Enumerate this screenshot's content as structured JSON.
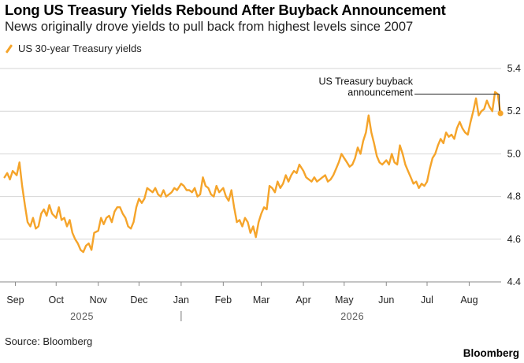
{
  "title": "Long US Treasury Yields Rebound After Buyback Announcement",
  "subtitle": "News originally drove yields to pull back from highest levels since 2007",
  "source": "Source: Bloomberg",
  "brand": "Bloomberg",
  "chart_data": {
    "type": "line",
    "title": "Long US Treasury Yields Rebound After Buyback Announcement",
    "subtitle": "News originally drove yields to pull back from highest levels since 2007",
    "legend_position": "top-left",
    "grid": true,
    "series": [
      {
        "name": "US 30-year Treasury yields",
        "color": "#f5a42a",
        "data": [
          [
            "2025-08-24",
            4.89
          ],
          [
            "2025-08-26",
            4.91
          ],
          [
            "2025-08-28",
            4.88
          ],
          [
            "2025-08-30",
            4.92
          ],
          [
            "2025-09-02",
            4.9
          ],
          [
            "2025-09-04",
            4.96
          ],
          [
            "2025-09-06",
            4.85
          ],
          [
            "2025-09-08",
            4.76
          ],
          [
            "2025-09-10",
            4.68
          ],
          [
            "2025-09-12",
            4.66
          ],
          [
            "2025-09-14",
            4.7
          ],
          [
            "2025-09-16",
            4.65
          ],
          [
            "2025-09-18",
            4.66
          ],
          [
            "2025-09-20",
            4.72
          ],
          [
            "2025-09-22",
            4.74
          ],
          [
            "2025-09-24",
            4.71
          ],
          [
            "2025-09-26",
            4.76
          ],
          [
            "2025-09-28",
            4.72
          ],
          [
            "2025-10-01",
            4.7
          ],
          [
            "2025-10-03",
            4.75
          ],
          [
            "2025-10-05",
            4.69
          ],
          [
            "2025-10-07",
            4.7
          ],
          [
            "2025-10-09",
            4.66
          ],
          [
            "2025-10-11",
            4.69
          ],
          [
            "2025-10-13",
            4.63
          ],
          [
            "2025-10-15",
            4.6
          ],
          [
            "2025-10-17",
            4.58
          ],
          [
            "2025-10-19",
            4.55
          ],
          [
            "2025-10-21",
            4.54
          ],
          [
            "2025-10-23",
            4.57
          ],
          [
            "2025-10-25",
            4.58
          ],
          [
            "2025-10-27",
            4.55
          ],
          [
            "2025-10-29",
            4.63
          ],
          [
            "2025-11-01",
            4.64
          ],
          [
            "2025-11-03",
            4.7
          ],
          [
            "2025-11-05",
            4.67
          ],
          [
            "2025-11-07",
            4.7
          ],
          [
            "2025-11-09",
            4.71
          ],
          [
            "2025-11-11",
            4.68
          ],
          [
            "2025-11-13",
            4.73
          ],
          [
            "2025-11-15",
            4.75
          ],
          [
            "2025-11-17",
            4.75
          ],
          [
            "2025-11-19",
            4.72
          ],
          [
            "2025-11-21",
            4.7
          ],
          [
            "2025-11-23",
            4.66
          ],
          [
            "2025-11-25",
            4.65
          ],
          [
            "2025-11-27",
            4.68
          ],
          [
            "2025-11-29",
            4.75
          ],
          [
            "2025-12-01",
            4.79
          ],
          [
            "2025-12-03",
            4.77
          ],
          [
            "2025-12-05",
            4.79
          ],
          [
            "2025-12-07",
            4.84
          ],
          [
            "2025-12-09",
            4.83
          ],
          [
            "2025-12-11",
            4.82
          ],
          [
            "2025-12-13",
            4.84
          ],
          [
            "2025-12-15",
            4.81
          ],
          [
            "2025-12-17",
            4.8
          ],
          [
            "2025-12-19",
            4.83
          ],
          [
            "2025-12-21",
            4.8
          ],
          [
            "2025-12-23",
            4.81
          ],
          [
            "2025-12-25",
            4.82
          ],
          [
            "2025-12-27",
            4.84
          ],
          [
            "2025-12-29",
            4.83
          ],
          [
            "2026-01-01",
            4.86
          ],
          [
            "2026-01-03",
            4.85
          ],
          [
            "2026-01-05",
            4.83
          ],
          [
            "2026-01-07",
            4.83
          ],
          [
            "2026-01-09",
            4.82
          ],
          [
            "2026-01-11",
            4.84
          ],
          [
            "2026-01-13",
            4.8
          ],
          [
            "2026-01-15",
            4.81
          ],
          [
            "2026-01-17",
            4.89
          ],
          [
            "2026-01-19",
            4.85
          ],
          [
            "2026-01-21",
            4.84
          ],
          [
            "2026-01-23",
            4.81
          ],
          [
            "2026-01-25",
            4.8
          ],
          [
            "2026-01-27",
            4.85
          ],
          [
            "2026-01-29",
            4.82
          ],
          [
            "2026-02-01",
            4.84
          ],
          [
            "2026-02-03",
            4.8
          ],
          [
            "2026-02-05",
            4.78
          ],
          [
            "2026-02-07",
            4.83
          ],
          [
            "2026-02-09",
            4.75
          ],
          [
            "2026-02-11",
            4.68
          ],
          [
            "2026-02-13",
            4.69
          ],
          [
            "2026-02-15",
            4.66
          ],
          [
            "2026-02-17",
            4.7
          ],
          [
            "2026-02-19",
            4.68
          ],
          [
            "2026-02-21",
            4.63
          ],
          [
            "2026-02-23",
            4.66
          ],
          [
            "2026-02-25",
            4.61
          ],
          [
            "2026-02-27",
            4.68
          ],
          [
            "2026-03-01",
            4.72
          ],
          [
            "2026-03-03",
            4.75
          ],
          [
            "2026-03-05",
            4.74
          ],
          [
            "2026-03-07",
            4.85
          ],
          [
            "2026-03-09",
            4.84
          ],
          [
            "2026-03-11",
            4.82
          ],
          [
            "2026-03-13",
            4.87
          ],
          [
            "2026-03-15",
            4.84
          ],
          [
            "2026-03-17",
            4.86
          ],
          [
            "2026-03-19",
            4.9
          ],
          [
            "2026-03-21",
            4.87
          ],
          [
            "2026-03-23",
            4.9
          ],
          [
            "2026-03-25",
            4.92
          ],
          [
            "2026-03-27",
            4.91
          ],
          [
            "2026-03-29",
            4.95
          ],
          [
            "2026-04-01",
            4.92
          ],
          [
            "2026-04-03",
            4.89
          ],
          [
            "2026-04-05",
            4.88
          ],
          [
            "2026-04-07",
            4.87
          ],
          [
            "2026-04-09",
            4.89
          ],
          [
            "2026-04-11",
            4.87
          ],
          [
            "2026-04-13",
            4.88
          ],
          [
            "2026-04-15",
            4.89
          ],
          [
            "2026-04-17",
            4.9
          ],
          [
            "2026-04-19",
            4.87
          ],
          [
            "2026-04-21",
            4.88
          ],
          [
            "2026-04-23",
            4.9
          ],
          [
            "2026-04-25",
            4.93
          ],
          [
            "2026-04-27",
            4.96
          ],
          [
            "2026-04-29",
            5.0
          ],
          [
            "2026-05-01",
            4.98
          ],
          [
            "2026-05-03",
            4.96
          ],
          [
            "2026-05-05",
            4.94
          ],
          [
            "2026-05-07",
            4.95
          ],
          [
            "2026-05-09",
            4.98
          ],
          [
            "2026-05-11",
            5.03
          ],
          [
            "2026-05-13",
            5.0
          ],
          [
            "2026-05-15",
            5.06
          ],
          [
            "2026-05-17",
            5.1
          ],
          [
            "2026-05-19",
            5.18
          ],
          [
            "2026-05-21",
            5.1
          ],
          [
            "2026-05-23",
            5.05
          ],
          [
            "2026-05-25",
            4.99
          ],
          [
            "2026-05-27",
            4.96
          ],
          [
            "2026-05-29",
            4.95
          ],
          [
            "2026-06-01",
            4.97
          ],
          [
            "2026-06-03",
            4.95
          ],
          [
            "2026-06-05",
            5.0
          ],
          [
            "2026-06-07",
            4.96
          ],
          [
            "2026-06-09",
            4.95
          ],
          [
            "2026-06-11",
            5.04
          ],
          [
            "2026-06-13",
            5.0
          ],
          [
            "2026-06-15",
            4.95
          ],
          [
            "2026-06-17",
            4.92
          ],
          [
            "2026-06-19",
            4.89
          ],
          [
            "2026-06-21",
            4.86
          ],
          [
            "2026-06-23",
            4.87
          ],
          [
            "2026-06-25",
            4.84
          ],
          [
            "2026-06-27",
            4.86
          ],
          [
            "2026-06-29",
            4.85
          ],
          [
            "2026-07-01",
            4.87
          ],
          [
            "2026-07-03",
            4.93
          ],
          [
            "2026-07-05",
            4.98
          ],
          [
            "2026-07-07",
            5.0
          ],
          [
            "2026-07-09",
            5.04
          ],
          [
            "2026-07-11",
            5.07
          ],
          [
            "2026-07-13",
            5.05
          ],
          [
            "2026-07-15",
            5.1
          ],
          [
            "2026-07-17",
            5.08
          ],
          [
            "2026-07-19",
            5.09
          ],
          [
            "2026-07-21",
            5.07
          ],
          [
            "2026-07-23",
            5.12
          ],
          [
            "2026-07-25",
            5.15
          ],
          [
            "2026-07-27",
            5.12
          ],
          [
            "2026-07-29",
            5.1
          ],
          [
            "2026-07-31",
            5.09
          ],
          [
            "2026-08-02",
            5.15
          ],
          [
            "2026-08-04",
            5.2
          ],
          [
            "2026-08-06",
            5.26
          ],
          [
            "2026-08-08",
            5.18
          ],
          [
            "2026-08-10",
            5.2
          ],
          [
            "2026-08-12",
            5.21
          ],
          [
            "2026-08-14",
            5.25
          ],
          [
            "2026-08-16",
            5.22
          ],
          [
            "2026-08-18",
            5.2
          ],
          [
            "2026-08-20",
            5.29
          ],
          [
            "2026-08-22",
            5.28
          ],
          [
            "2026-08-24",
            5.19
          ]
        ]
      }
    ],
    "x_axis": {
      "type": "date",
      "range": [
        "2025-08-23",
        "2026-08-28"
      ],
      "ticks": [
        {
          "label": "Sep",
          "date": "2025-09-01"
        },
        {
          "label": "Oct",
          "date": "2025-10-01"
        },
        {
          "label": "Nov",
          "date": "2025-11-01"
        },
        {
          "label": "Dec",
          "date": "2025-12-01"
        },
        {
          "label": "Jan",
          "date": "2026-01-01"
        },
        {
          "label": "Feb",
          "date": "2026-02-01"
        },
        {
          "label": "Mar",
          "date": "2026-03-01"
        },
        {
          "label": "Apr",
          "date": "2026-04-01"
        },
        {
          "label": "May",
          "date": "2026-05-01"
        },
        {
          "label": "Jun",
          "date": "2026-06-01"
        },
        {
          "label": "Jul",
          "date": "2026-07-01"
        },
        {
          "label": "Aug",
          "date": "2026-08-01"
        }
      ],
      "years": [
        {
          "label": "2025",
          "date": "2025-10-20"
        },
        {
          "label": "2026",
          "date": "2026-05-07"
        }
      ],
      "year_divider": "2026-01-01"
    },
    "y_axis": {
      "range": [
        4.4,
        5.4
      ],
      "position": "right",
      "ticks": [
        4.4,
        4.6,
        4.8,
        5.0,
        5.2,
        5.4
      ],
      "tick_labels": [
        "4.4",
        "4.6",
        "4.8",
        "5.0",
        "5.2",
        "5.4"
      ]
    },
    "annotations": [
      {
        "lines": [
          "US Treasury buyback",
          "announcement"
        ],
        "date": "2026-08-22",
        "value": 5.28,
        "marker": {
          "date": "2026-08-24",
          "value": 5.19
        }
      }
    ]
  }
}
